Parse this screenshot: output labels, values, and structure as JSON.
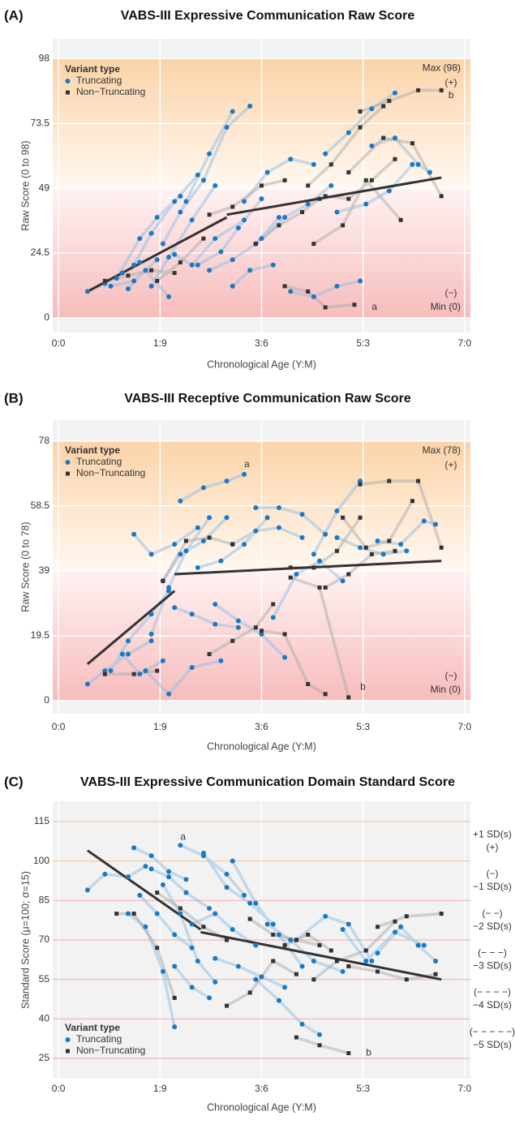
{
  "chart_data": [
    {
      "type": "line",
      "panel_label": "(A)",
      "title": "VABS-III Expressive Communication Raw Score",
      "x_label": "Chronological Age (Y:M)",
      "y_label": "Raw Score (0 to 98)",
      "xlim": [
        -0.1,
        7.1
      ],
      "xticks": [
        {
          "value": 0,
          "label": "0:0"
        },
        {
          "value": 1.75,
          "label": "1:9"
        },
        {
          "value": 3.5,
          "label": "3:6"
        },
        {
          "value": 5.25,
          "label": "5:3"
        },
        {
          "value": 7,
          "label": "7:0"
        }
      ],
      "ylim": [
        -5.5,
        105.4
      ],
      "yticks": [
        0,
        24.5,
        49,
        73.5,
        98
      ],
      "band": true,
      "legend": "upper left",
      "legend_title": "Variant type",
      "annotations": {
        "max": "Max (98)",
        "plus": "(+)",
        "minus": "(−)",
        "min": "Min (0)"
      },
      "notes": [
        "a",
        "b"
      ],
      "series": [
        {
          "name": "Truncating",
          "color": "#1b78c2",
          "line_color": "#8dbde3",
          "marker": "circle",
          "x": [
            0.5,
            0.8,
            1.1,
            1.4,
            null,
            1.0,
            1.4,
            1.7,
            2.1,
            null,
            1.3,
            1.6,
            2.0,
            2.4,
            null,
            1.6,
            1.9,
            2.3,
            2.7,
            null,
            1.8,
            2.2,
            2.6,
            3.0,
            null,
            2.1,
            2.5,
            2.9,
            3.3,
            null,
            1.2,
            1.5,
            1.9,
            null,
            2.4,
            2.8,
            3.1,
            3.5,
            null,
            2.6,
            3.0,
            3.4,
            3.8,
            null,
            3.2,
            3.6,
            4.0,
            4.4,
            null,
            3.5,
            3.9,
            4.3,
            4.7,
            null,
            4.0,
            4.4,
            4.8,
            5.2,
            null,
            4.6,
            5.0,
            5.4,
            5.8,
            null,
            4.8,
            5.3,
            5.7,
            6.1,
            null,
            5.4,
            5.8,
            6.2,
            6.4,
            null,
            0.9,
            1.3,
            1.7,
            null,
            2.0,
            2.3,
            2.7,
            3.2,
            null,
            3.0,
            3.3,
            3.7
          ],
          "values": [
            10,
            13,
            17,
            21,
            null,
            15,
            30,
            38,
            46,
            null,
            20,
            32,
            44,
            54,
            null,
            12,
            23,
            37,
            50,
            null,
            28,
            44,
            62,
            78,
            null,
            40,
            52,
            72,
            80,
            null,
            11,
            18,
            8,
            null,
            20,
            25,
            34,
            45,
            null,
            18,
            22,
            28,
            38,
            null,
            44,
            55,
            60,
            58,
            null,
            30,
            38,
            43,
            50,
            null,
            10,
            8,
            12,
            14,
            null,
            62,
            70,
            79,
            85,
            null,
            40,
            43,
            48,
            58,
            null,
            65,
            68,
            58,
            55,
            null,
            12,
            14,
            22,
            null,
            24,
            20,
            30,
            37,
            null,
            12,
            18,
            20
          ]
        },
        {
          "name": "Non−Truncating",
          "color": "#333333",
          "line_color": "#aaaaaa",
          "marker": "square",
          "x": [
            0.8,
            1.2,
            1.6,
            2.0,
            null,
            1.7,
            2.1,
            2.5,
            null,
            2.6,
            3.0,
            3.5,
            3.9,
            null,
            3.4,
            3.8,
            4.2,
            4.5,
            null,
            3.9,
            4.3,
            4.6,
            5.1,
            null,
            4.3,
            4.7,
            5.2,
            5.6,
            null,
            4.6,
            5.0,
            5.4,
            5.8,
            null,
            5.2,
            5.7,
            6.2,
            6.6,
            null,
            5.0,
            5.6,
            6.1,
            6.6,
            null,
            4.4,
            4.9,
            5.3,
            5.9
          ],
          "values": [
            14,
            16,
            18,
            17,
            null,
            14,
            21,
            30,
            null,
            39,
            42,
            50,
            52,
            null,
            28,
            35,
            40,
            45,
            null,
            12,
            10,
            4,
            5,
            null,
            50,
            58,
            72,
            80,
            null,
            46,
            45,
            52,
            60,
            null,
            78,
            82,
            86,
            86,
            null,
            55,
            68,
            66,
            46,
            null,
            28,
            35,
            52,
            37
          ]
        }
      ],
      "trend": [
        {
          "color": "#333333",
          "x": [
            0.5,
            2.9
          ],
          "values": [
            10,
            38
          ]
        },
        {
          "color": "#333333",
          "x": [
            2.9,
            6.6
          ],
          "values": [
            39,
            53
          ]
        }
      ]
    },
    {
      "type": "line",
      "panel_label": "(B)",
      "title": "VABS-III Receptive Communication Raw Score",
      "x_label": "Chronological Age (Y:M)",
      "y_label": "Raw Score (0 to 78)",
      "xlim": [
        -0.1,
        7.1
      ],
      "xticks": [
        {
          "value": 0,
          "label": "0:0"
        },
        {
          "value": 1.75,
          "label": "1:9"
        },
        {
          "value": 3.5,
          "label": "3:6"
        },
        {
          "value": 5.25,
          "label": "5:3"
        },
        {
          "value": 7,
          "label": "7:0"
        }
      ],
      "ylim": [
        -3.9,
        84.3
      ],
      "yticks": [
        0,
        19.5,
        39,
        58.5,
        78
      ],
      "band": true,
      "legend": "upper left",
      "legend_title": "Variant type",
      "annotations": {
        "max": "Max (78)",
        "plus": "(+)",
        "minus": "(−)",
        "min": "Min (0)"
      },
      "notes": [
        "a",
        "b"
      ],
      "series": [
        {
          "name": "Truncating",
          "color": "#1b78c2",
          "line_color": "#8dbde3",
          "marker": "circle",
          "x": [
            0.5,
            0.8,
            1.2,
            1.6,
            null,
            0.9,
            1.2,
            1.6,
            1.9,
            null,
            1.3,
            1.6,
            2.0,
            2.4,
            null,
            1.6,
            1.9,
            2.2,
            2.6,
            null,
            1.8,
            2.1,
            2.5,
            2.9,
            null,
            2.1,
            2.5,
            2.9,
            3.2,
            null,
            2.0,
            2.3,
            2.7,
            3.1,
            null,
            2.4,
            2.8,
            3.2,
            3.6,
            null,
            2.7,
            3.1,
            3.5,
            3.9,
            null,
            3.0,
            3.4,
            3.8,
            4.2,
            null,
            3.4,
            3.8,
            4.2,
            4.6,
            null,
            3.7,
            4.1,
            4.5,
            4.9,
            null,
            4.4,
            4.8,
            5.2,
            null,
            4.8,
            5.2,
            5.6,
            6.0,
            null,
            5.5,
            5.9,
            6.3,
            6.5,
            null,
            1.1,
            1.4,
            1.8,
            null,
            1.5,
            1.9,
            2.3,
            2.8
          ],
          "values": [
            5,
            9,
            14,
            18,
            null,
            9,
            18,
            26,
            33,
            null,
            50,
            44,
            47,
            52,
            null,
            20,
            34,
            45,
            55,
            null,
            36,
            44,
            48,
            55,
            null,
            60,
            64,
            66,
            68,
            null,
            28,
            26,
            23,
            22,
            null,
            40,
            42,
            47,
            55,
            null,
            29,
            24,
            20,
            13,
            null,
            47,
            51,
            52,
            49,
            null,
            58,
            58,
            56,
            50,
            null,
            25,
            38,
            42,
            36,
            null,
            44,
            57,
            66,
            null,
            49,
            46,
            44,
            45,
            null,
            48,
            47,
            54,
            53,
            null,
            14,
            8,
            12,
            null,
            9,
            2,
            10,
            12
          ]
        },
        {
          "name": "Non−Truncating",
          "color": "#333333",
          "line_color": "#aaaaaa",
          "marker": "square",
          "x": [
            0.8,
            1.3,
            1.7,
            null,
            1.8,
            2.2,
            2.6,
            3.0,
            null,
            2.6,
            3.0,
            3.4,
            3.7,
            null,
            3.5,
            3.9,
            4.3,
            4.6,
            null,
            4.0,
            4.4,
            4.8,
            5.2,
            null,
            4.6,
            5.0,
            5.4,
            5.8,
            null,
            5.2,
            5.7,
            6.2,
            6.6,
            null,
            4.9,
            5.3,
            5.7,
            6.1,
            null,
            4.0,
            4.5,
            5.0
          ],
          "values": [
            8,
            8,
            9,
            null,
            36,
            48,
            49,
            47,
            null,
            14,
            18,
            22,
            29,
            null,
            21,
            20,
            5,
            2,
            null,
            40,
            40,
            45,
            55,
            null,
            34,
            38,
            44,
            45,
            null,
            65,
            66,
            66,
            46,
            null,
            55,
            46,
            48,
            60,
            null,
            37,
            34,
            1
          ]
        }
      ],
      "trend": [
        {
          "color": "#333333",
          "x": [
            0.5,
            2.0
          ],
          "values": [
            11,
            33
          ]
        },
        {
          "color": "#333333",
          "x": [
            2.0,
            6.6
          ],
          "values": [
            38,
            42
          ]
        }
      ]
    },
    {
      "type": "line",
      "panel_label": "(C)",
      "title": "VABS-III Expressive Communication Domain Standard Score",
      "x_label": "Chronological Age (Y:M)",
      "y_label": "Standard Score (μ=100; σ=15)",
      "xlim": [
        -0.1,
        7.1
      ],
      "xticks": [
        {
          "value": 0,
          "label": "0:0"
        },
        {
          "value": 1.75,
          "label": "1:9"
        },
        {
          "value": 3.5,
          "label": "3:6"
        },
        {
          "value": 5.25,
          "label": "5:3"
        },
        {
          "value": 7,
          "label": "7:0"
        }
      ],
      "ylim": [
        17.3,
        122.7
      ],
      "yticks": [
        25,
        40,
        55,
        70,
        85,
        100,
        115
      ],
      "line_colors": [
        "#f4c0c0",
        "#f4c0c0",
        "#f4c0c0",
        "#f4c0c0",
        "#f4c0c0",
        "#f8d2ac",
        "#f8d2ac"
      ],
      "band": false,
      "legend": "lower left",
      "legend_title": "Variant type",
      "notes": [
        "a",
        "b"
      ],
      "sd_labels": [
        {
          "lines": [
            "+1 SD(s)",
            "(+)"
          ],
          "color": "#f0a060"
        },
        {
          "lines": [
            "(−)",
            "−1 SD(s)"
          ],
          "color": "#c0504d"
        },
        {
          "lines": [
            "(− −)",
            "−2 SD(s)"
          ],
          "color": "#c96a66"
        },
        {
          "lines": [
            "(− − −)",
            "−3 SD(s)"
          ],
          "color": "#c96a66"
        },
        {
          "lines": [
            "(− − − −)",
            "−4 SD(s)"
          ],
          "color": "#d07f7a"
        },
        {
          "lines": [
            "(− − − − −)",
            "−5 SD(s)"
          ],
          "color": "#d07f7a"
        }
      ],
      "series": [
        {
          "name": "Truncating",
          "color": "#1b78c2",
          "line_color": "#8dbde3",
          "marker": "circle",
          "x": [
            0.5,
            0.8,
            1.2,
            1.5,
            null,
            1.3,
            1.6,
            1.9,
            2.2,
            null,
            1.4,
            1.7,
            2.0,
            2.3,
            null,
            1.2,
            1.5,
            1.8,
            2.0,
            null,
            1.6,
            1.9,
            2.2,
            2.6,
            null,
            2.1,
            2.5,
            2.9,
            3.2,
            null,
            2.3,
            2.7,
            3.0,
            3.4,
            null,
            2.5,
            2.9,
            3.3,
            3.7,
            null,
            2.7,
            3.1,
            3.5,
            3.9,
            null,
            3.0,
            3.4,
            3.8,
            4.2,
            null,
            3.4,
            3.8,
            4.2,
            4.5,
            null,
            3.6,
            4.0,
            4.4,
            4.9,
            null,
            4.1,
            4.6,
            5.0,
            5.4,
            null,
            4.9,
            5.3,
            5.8,
            6.3,
            null,
            5.5,
            5.9,
            6.2,
            6.5,
            null,
            1.8,
            2.1,
            2.4,
            2.7,
            null,
            2.0,
            2.3,
            2.6
          ],
          "values": [
            89,
            95,
            94,
            98,
            null,
            105,
            102,
            96,
            93,
            null,
            87,
            80,
            72,
            67,
            null,
            80,
            75,
            58,
            37,
            null,
            97,
            94,
            88,
            82,
            null,
            106,
            102,
            95,
            87,
            null,
            76,
            80,
            74,
            68,
            null,
            103,
            90,
            84,
            76,
            null,
            63,
            60,
            56,
            52,
            null,
            100,
            84,
            72,
            60,
            null,
            55,
            47,
            38,
            34,
            null,
            76,
            70,
            62,
            58,
            null,
            70,
            79,
            76,
            62,
            null,
            74,
            62,
            73,
            68,
            null,
            65,
            75,
            68,
            62,
            null,
            91,
            80,
            62,
            54,
            null,
            60,
            52,
            48
          ]
        },
        {
          "name": "Non−Truncating",
          "color": "#333333",
          "line_color": "#aaaaaa",
          "marker": "square",
          "x": [
            1.0,
            1.3,
            1.7,
            2.0,
            null,
            1.7,
            2.1,
            2.5,
            2.9,
            null,
            2.9,
            3.3,
            3.7,
            4.1,
            null,
            3.3,
            3.7,
            4.1,
            4.5,
            null,
            4.1,
            4.5,
            5.0,
            null,
            4.4,
            4.8,
            5.3,
            5.8,
            null,
            5.0,
            5.5,
            6.0,
            6.5,
            null,
            5.5,
            6.0,
            6.6,
            null,
            3.9,
            4.3,
            4.7
          ],
          "values": [
            80,
            80,
            67,
            48,
            null,
            88,
            82,
            75,
            70,
            null,
            45,
            50,
            62,
            57,
            null,
            78,
            72,
            70,
            68,
            null,
            33,
            30,
            27,
            null,
            55,
            62,
            66,
            77,
            null,
            60,
            58,
            55,
            57,
            null,
            75,
            79,
            80,
            null,
            68,
            72,
            66
          ]
        }
      ],
      "trend": [
        {
          "color": "#333333",
          "x": [
            0.5,
            2.45
          ],
          "values": [
            104,
            74
          ]
        },
        {
          "color": "#333333",
          "x": [
            2.45,
            6.6
          ],
          "values": [
            73,
            55
          ]
        }
      ]
    }
  ]
}
